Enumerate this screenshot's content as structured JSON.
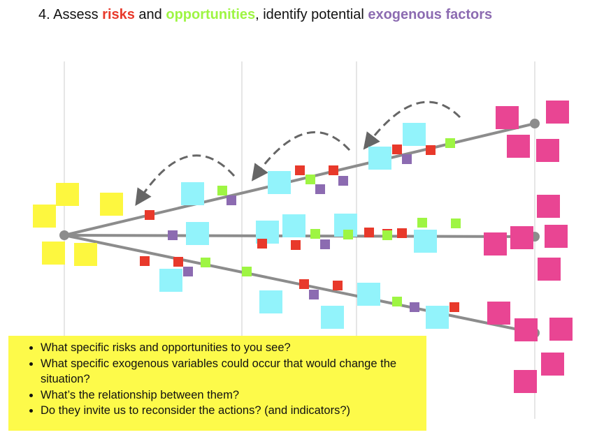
{
  "title": {
    "prefix": "4. Assess ",
    "risks": "risks",
    "and": " and ",
    "opportunities": "opportunities",
    "middle": ", identify potential ",
    "exogenous": "exogenous factors"
  },
  "colors": {
    "risk": "#e8392b",
    "opportunity": "#9ef543",
    "exogenous": "#8c6bb1",
    "start_notes": "#fdf73f",
    "action_notes": "#92f3fb",
    "outcome_notes": "#e94593",
    "path_line": "#8c8c8c",
    "grid_line": "#cccccc",
    "question_box": "#fdfa4a"
  },
  "icons": {
    "feedback_arrow": "dashed-curved-arrow-icon"
  },
  "questions": [
    "What specific risks and opportunities to you see?",
    "What specific exogenous variables could occur that would change the situation?",
    "What’s the relationship between them?",
    "Do they invite us to reconsider the actions? (and indicators?)"
  ]
}
